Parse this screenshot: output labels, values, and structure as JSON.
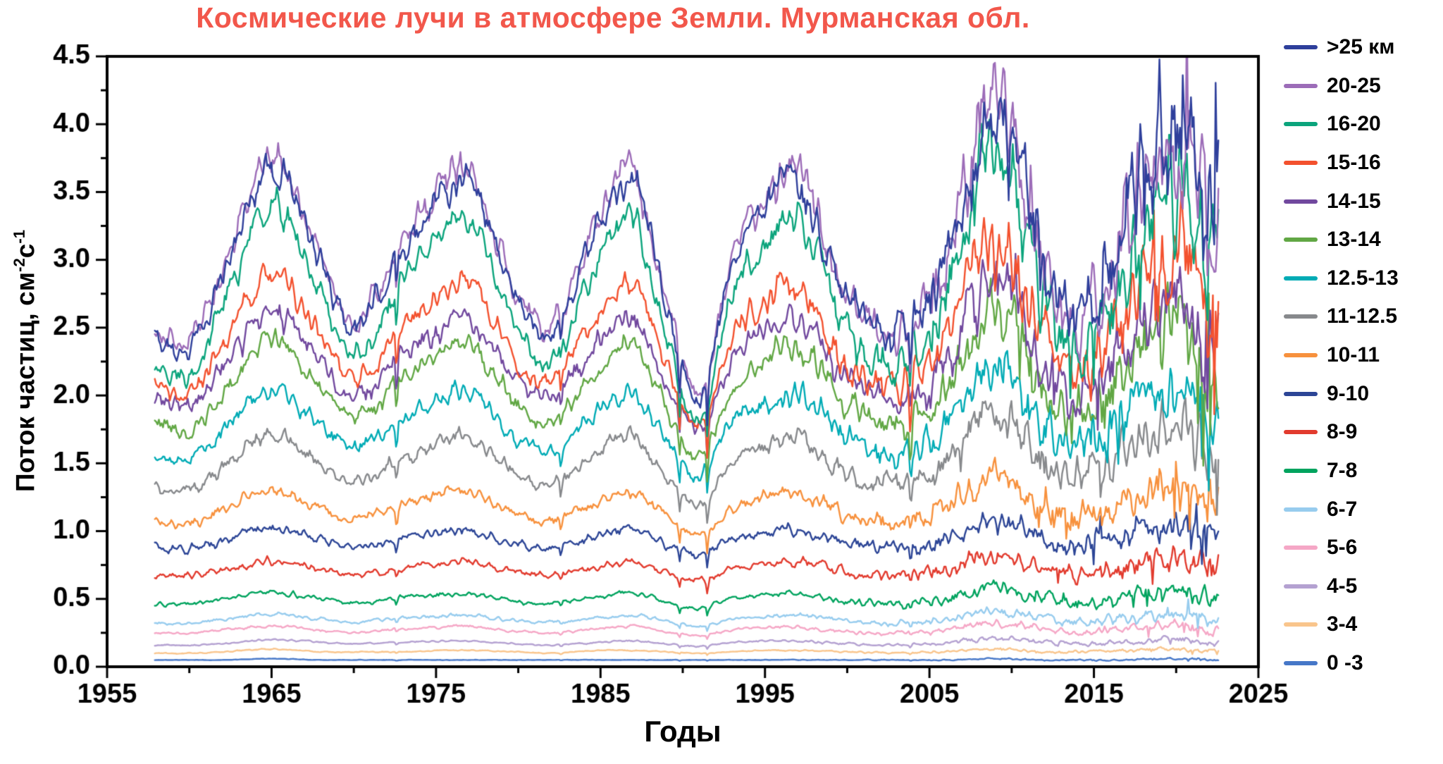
{
  "chart_data": {
    "type": "line",
    "title": "Космические лучи в атмосфере Земли. Мурманская обл.",
    "title_color": "#f2574b",
    "xlabel": "Годы",
    "ylabel": {
      "prefix": "Поток частиц, см",
      "sup1": "-2",
      "mid": "с",
      "sup2": "-1"
    },
    "xlim": [
      1955,
      2025
    ],
    "ylim": [
      0,
      4.5
    ],
    "x_ticks": [
      1955,
      1965,
      1975,
      1985,
      1995,
      2005,
      2015,
      2025
    ],
    "x_minor_step": 5,
    "y_ticks": [
      0.0,
      0.5,
      1.0,
      1.5,
      2.0,
      2.5,
      3.0,
      3.5,
      4.0,
      4.5
    ],
    "y_minor_step": 0.25,
    "grid": false,
    "legend_position": "right",
    "legend_title_units": "км",
    "data_start_year": 1957.9,
    "data_end_year": 2022.6,
    "anchor_years": [
      1958,
      1960,
      1962,
      1965,
      1968,
      1970,
      1973,
      1975,
      1977,
      1980,
      1982,
      1985,
      1987,
      1989,
      1991,
      1993,
      1995,
      1997,
      2000,
      2003,
      2006,
      2009,
      2012,
      2014,
      2017,
      2020,
      2022
    ],
    "series": [
      {
        "label": ">25 км",
        "color": "#2e3f9b",
        "values": [
          2.4,
          2.35,
          2.89,
          3.7,
          2.98,
          2.51,
          3.07,
          3.43,
          3.59,
          2.71,
          2.48,
          3.25,
          3.59,
          2.66,
          1.97,
          2.98,
          3.38,
          3.56,
          2.71,
          2.42,
          2.98,
          4.05,
          2.98,
          2.53,
          3.3,
          4.05,
          3.45
        ]
      },
      {
        "label": "20-25",
        "color": "#9c6cb8",
        "values": [
          2.45,
          2.4,
          2.94,
          3.75,
          3.03,
          2.56,
          3.12,
          3.48,
          3.64,
          2.76,
          2.53,
          3.3,
          3.64,
          2.71,
          2.02,
          3.03,
          3.43,
          3.61,
          2.76,
          2.47,
          3.03,
          4.2,
          3.03,
          2.58,
          3.25,
          3.8,
          3.3
        ]
      },
      {
        "label": "16-20",
        "color": "#0ba47c",
        "values": [
          2.21,
          2.16,
          2.66,
          3.4,
          2.74,
          2.31,
          2.82,
          3.15,
          3.3,
          2.49,
          2.28,
          2.99,
          3.3,
          2.44,
          1.82,
          2.74,
          3.1,
          3.27,
          2.49,
          2.23,
          2.74,
          3.81,
          2.74,
          2.33,
          2.99,
          3.58,
          2.91
        ]
      },
      {
        "label": "15-16",
        "color": "#f3512e",
        "values": [
          2.05,
          2.02,
          2.37,
          2.9,
          2.43,
          2.12,
          2.49,
          2.72,
          2.83,
          2.25,
          2.1,
          2.61,
          2.83,
          2.22,
          1.77,
          2.43,
          2.69,
          2.81,
          2.25,
          2.06,
          2.43,
          3.2,
          2.43,
          2.13,
          2.61,
          3.03,
          2.55
        ]
      },
      {
        "label": "14-15",
        "color": "#71489e",
        "values": [
          1.96,
          1.93,
          2.21,
          2.62,
          2.25,
          2.01,
          2.3,
          2.48,
          2.57,
          2.11,
          1.99,
          2.39,
          2.57,
          2.09,
          1.74,
          2.25,
          2.45,
          2.55,
          2.11,
          1.97,
          2.25,
          2.85,
          2.25,
          2.02,
          2.39,
          2.72,
          2.34
        ]
      },
      {
        "label": "13-14",
        "color": "#61a744",
        "values": [
          1.77,
          1.75,
          2.02,
          2.42,
          2.06,
          1.83,
          2.11,
          2.29,
          2.37,
          1.93,
          1.81,
          2.2,
          2.37,
          1.9,
          1.56,
          2.06,
          2.26,
          2.35,
          1.93,
          1.78,
          2.06,
          2.65,
          2.06,
          1.84,
          2.2,
          2.52,
          2.15
        ]
      },
      {
        "label": "12.5-13",
        "color": "#00abb5",
        "values": [
          1.57,
          1.55,
          1.75,
          2.06,
          1.79,
          1.61,
          1.82,
          1.96,
          2.02,
          1.69,
          1.6,
          1.89,
          2.02,
          1.67,
          1.41,
          1.79,
          1.94,
          2.01,
          1.69,
          1.58,
          1.79,
          2.23,
          1.79,
          1.62,
          1.89,
          2.13,
          1.86
        ]
      },
      {
        "label": "11-12.5",
        "color": "#87898c",
        "values": [
          1.33,
          1.32,
          1.48,
          1.72,
          1.5,
          1.36,
          1.53,
          1.64,
          1.69,
          1.42,
          1.35,
          1.59,
          1.69,
          1.41,
          1.2,
          1.5,
          1.62,
          1.68,
          1.42,
          1.34,
          1.5,
          1.86,
          1.5,
          1.37,
          1.59,
          1.78,
          1.56
        ]
      },
      {
        "label": "10-11",
        "color": "#f7913d",
        "values": [
          1.07,
          1.06,
          1.16,
          1.31,
          1.17,
          1.09,
          1.19,
          1.26,
          1.29,
          1.12,
          1.08,
          1.23,
          1.29,
          1.11,
          0.98,
          1.17,
          1.25,
          1.28,
          1.12,
          1.07,
          1.17,
          1.4,
          1.17,
          1.09,
          1.23,
          1.35,
          1.21
        ]
      },
      {
        "label": "9-10",
        "color": "#2c4596",
        "values": [
          0.88,
          0.87,
          0.93,
          1.02,
          0.94,
          0.89,
          0.95,
          0.99,
          1.01,
          0.91,
          0.88,
          0.97,
          1.01,
          0.9,
          0.83,
          0.94,
          0.98,
          1.0,
          0.91,
          0.88,
          0.94,
          1.07,
          0.94,
          0.89,
          0.97,
          1.04,
          0.96
        ]
      },
      {
        "label": "8-9",
        "color": "#e23b2e",
        "values": [
          0.67,
          0.67,
          0.71,
          0.78,
          0.72,
          0.68,
          0.73,
          0.76,
          0.77,
          0.7,
          0.68,
          0.74,
          0.77,
          0.69,
          0.64,
          0.72,
          0.75,
          0.77,
          0.7,
          0.67,
          0.72,
          0.82,
          0.72,
          0.68,
          0.74,
          0.8,
          0.74
        ]
      },
      {
        "label": "7-8",
        "color": "#00a35e",
        "values": [
          0.46,
          0.46,
          0.5,
          0.55,
          0.5,
          0.47,
          0.51,
          0.53,
          0.54,
          0.48,
          0.47,
          0.52,
          0.54,
          0.48,
          0.43,
          0.5,
          0.53,
          0.54,
          0.48,
          0.46,
          0.5,
          0.58,
          0.5,
          0.47,
          0.52,
          0.56,
          0.51
        ]
      },
      {
        "label": "6-7",
        "color": "#97ccee",
        "values": [
          0.32,
          0.32,
          0.35,
          0.39,
          0.35,
          0.33,
          0.36,
          0.37,
          0.38,
          0.34,
          0.33,
          0.36,
          0.38,
          0.34,
          0.3,
          0.35,
          0.37,
          0.38,
          0.34,
          0.32,
          0.35,
          0.41,
          0.35,
          0.33,
          0.36,
          0.39,
          0.36
        ]
      },
      {
        "label": "5-6",
        "color": "#f5a7c6",
        "values": [
          0.25,
          0.25,
          0.27,
          0.3,
          0.27,
          0.25,
          0.28,
          0.29,
          0.3,
          0.26,
          0.25,
          0.28,
          0.3,
          0.26,
          0.23,
          0.27,
          0.29,
          0.29,
          0.26,
          0.25,
          0.27,
          0.32,
          0.27,
          0.25,
          0.28,
          0.31,
          0.28
        ]
      },
      {
        "label": "4-5",
        "color": "#b4a1d1",
        "values": [
          0.16,
          0.16,
          0.17,
          0.2,
          0.18,
          0.17,
          0.18,
          0.19,
          0.19,
          0.17,
          0.16,
          0.18,
          0.19,
          0.17,
          0.15,
          0.18,
          0.19,
          0.19,
          0.17,
          0.16,
          0.18,
          0.21,
          0.18,
          0.17,
          0.18,
          0.2,
          0.18
        ]
      },
      {
        "label": "3-4",
        "color": "#f9c58c",
        "values": [
          0.1,
          0.1,
          0.11,
          0.13,
          0.11,
          0.11,
          0.11,
          0.12,
          0.12,
          0.11,
          0.1,
          0.12,
          0.12,
          0.11,
          0.1,
          0.11,
          0.12,
          0.12,
          0.11,
          0.1,
          0.11,
          0.13,
          0.11,
          0.11,
          0.12,
          0.13,
          0.12
        ]
      },
      {
        "label": "0 -3",
        "color": "#4677c8",
        "values": [
          0.05,
          0.05,
          0.05,
          0.06,
          0.05,
          0.05,
          0.05,
          0.05,
          0.05,
          0.05,
          0.05,
          0.05,
          0.05,
          0.05,
          0.05,
          0.05,
          0.05,
          0.05,
          0.05,
          0.05,
          0.05,
          0.06,
          0.05,
          0.05,
          0.05,
          0.06,
          0.05
        ]
      }
    ],
    "dip_events": [
      {
        "year": 1972.6,
        "depth": 0.1
      },
      {
        "year": 1982.6,
        "depth": 0.08
      },
      {
        "year": 1989.8,
        "depth": 0.12
      },
      {
        "year": 1991.5,
        "depth": 0.15
      },
      {
        "year": 2003.85,
        "depth": 0.12
      },
      {
        "year": 2005.1,
        "depth": 0.08
      },
      {
        "year": 2015.5,
        "depth": 0.07
      },
      {
        "year": 2021.9,
        "depth": 0.14
      }
    ]
  }
}
